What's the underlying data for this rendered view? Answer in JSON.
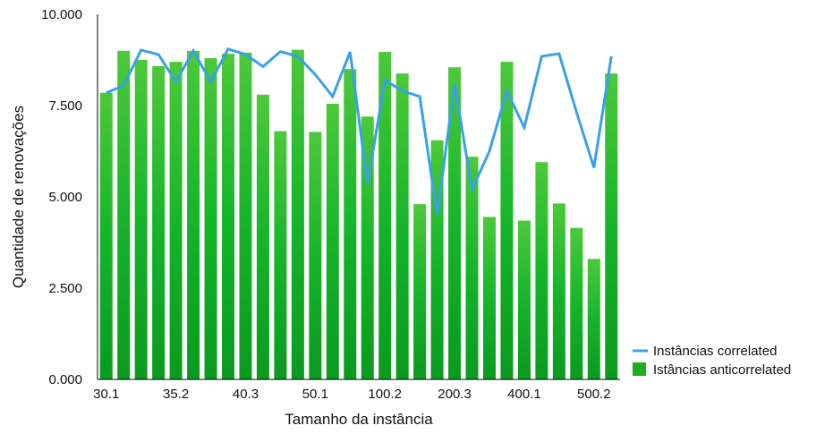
{
  "chart_data": {
    "type": "bar",
    "title": "",
    "xlabel": "Tamanho da instância",
    "ylabel": "Quantidade de renovações",
    "ylim": [
      0,
      10000
    ],
    "yticks": [
      0,
      2500,
      5000,
      7500,
      10000
    ],
    "ytick_labels": [
      "0.000",
      "2.500",
      "5.000",
      "7.500",
      "10.000"
    ],
    "xtick_labels": [
      {
        "index": 0,
        "label": "30.1"
      },
      {
        "index": 4,
        "label": "35.2"
      },
      {
        "index": 8,
        "label": "40.3"
      },
      {
        "index": 12,
        "label": "50.1"
      },
      {
        "index": 16,
        "label": "100.2"
      },
      {
        "index": 20,
        "label": "200.3"
      },
      {
        "index": 24,
        "label": "400.1"
      },
      {
        "index": 28,
        "label": "500.2"
      }
    ],
    "series": [
      {
        "name": "Istâncias anticorrelated",
        "type": "bar",
        "color": "#1fad1f",
        "values": [
          7850,
          9000,
          8750,
          8580,
          8700,
          9000,
          8800,
          8920,
          8950,
          7800,
          6800,
          9030,
          6780,
          7550,
          8500,
          7200,
          8970,
          8380,
          4800,
          6550,
          8550,
          6100,
          4450,
          8700,
          4350,
          5950,
          4820,
          4150,
          3300,
          8380
        ]
      },
      {
        "name": "Instâncias correlated",
        "type": "line",
        "color": "#3aa0e8",
        "values": [
          7850,
          8050,
          9020,
          8900,
          8150,
          9000,
          8150,
          9050,
          8900,
          8570,
          8980,
          8850,
          8350,
          7750,
          8970,
          5350,
          8200,
          7900,
          7750,
          4500,
          8100,
          5200,
          6250,
          7900,
          6900,
          8850,
          8920,
          7320,
          5800,
          8850
        ]
      }
    ],
    "legend_position": "right"
  }
}
